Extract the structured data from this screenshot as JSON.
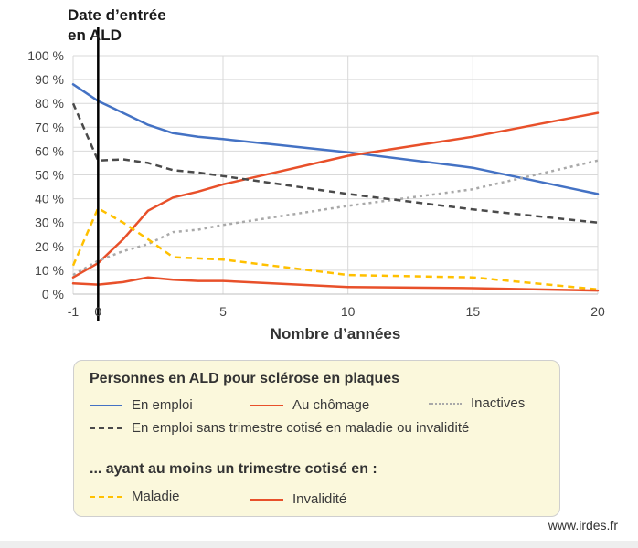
{
  "chart_data": {
    "type": "line",
    "title_lines": [
      "Date d’entrée",
      "en ALD"
    ],
    "xlabel": "Nombre d’années",
    "ylabel": "",
    "xlim": [
      -1,
      20
    ],
    "ylim": [
      0,
      100
    ],
    "xticks": [
      -1,
      0,
      5,
      10,
      15,
      20
    ],
    "yticks": [
      0,
      10,
      20,
      30,
      40,
      50,
      60,
      70,
      80,
      90,
      100
    ],
    "ytick_suffix": " %",
    "grid": true,
    "marker_line_x": 0,
    "series": [
      {
        "key": "emploi",
        "name": "En emploi",
        "color": "#4472c4",
        "style": "solid",
        "x": [
          -1,
          0,
          1,
          2,
          3,
          4,
          5,
          10,
          15,
          20
        ],
        "y": [
          88,
          81,
          76,
          71,
          67.5,
          66,
          65,
          59.5,
          53,
          42
        ]
      },
      {
        "key": "chomage",
        "name": "Au chômage",
        "color": "#e8502a",
        "style": "solid",
        "x": [
          -1,
          0,
          1,
          2,
          3,
          4,
          5,
          10,
          15,
          20
        ],
        "y": [
          7,
          13,
          23,
          35,
          40.5,
          43,
          46,
          58,
          66,
          76
        ]
      },
      {
        "key": "inactives",
        "name": "Inactives",
        "color": "#a9a9a9",
        "style": "dotted",
        "x": [
          -1,
          0,
          1,
          2,
          3,
          4,
          5,
          10,
          15,
          20
        ],
        "y": [
          8,
          14,
          18,
          21,
          26,
          27,
          29,
          37,
          44,
          56
        ]
      },
      {
        "key": "emploi_sans",
        "name": "En emploi sans trimestre cotisé en maladie ou invalidité",
        "color": "#4a4a4a",
        "style": "dashed",
        "x": [
          -1,
          0,
          1,
          2,
          3,
          4,
          5,
          10,
          15,
          20
        ],
        "y": [
          80,
          56,
          56.5,
          55,
          52,
          51,
          49.5,
          42,
          35.5,
          30
        ]
      },
      {
        "key": "maladie",
        "name": "Maladie",
        "color": "#ffc000",
        "style": "dashed",
        "x": [
          -1,
          0,
          1,
          2,
          3,
          4,
          5,
          10,
          15,
          20
        ],
        "y": [
          12,
          36,
          30,
          23,
          15.5,
          15,
          14.5,
          8,
          7,
          2
        ]
      },
      {
        "key": "invalidite",
        "name": "Invalidité",
        "color": "#e8502a",
        "style": "solid",
        "x": [
          -1,
          0,
          1,
          2,
          3,
          4,
          5,
          10,
          15,
          20
        ],
        "y": [
          4.5,
          4,
          5,
          7,
          6,
          5.5,
          5.5,
          3,
          2.5,
          1.5
        ]
      }
    ]
  },
  "legend": {
    "heading": "Personnes en ALD pour sclérose en plaques",
    "subheading": "... ayant au moins un trimestre cotisé en :",
    "items": {
      "emploi": "En emploi",
      "chomage": "Au chômage",
      "inactives": "Inactives",
      "emploi_sans": "En emploi sans trimestre cotisé en maladie ou invalidité",
      "maladie": "Maladie",
      "invalidite": "Invalidité"
    }
  },
  "source": "www.irdes.fr"
}
